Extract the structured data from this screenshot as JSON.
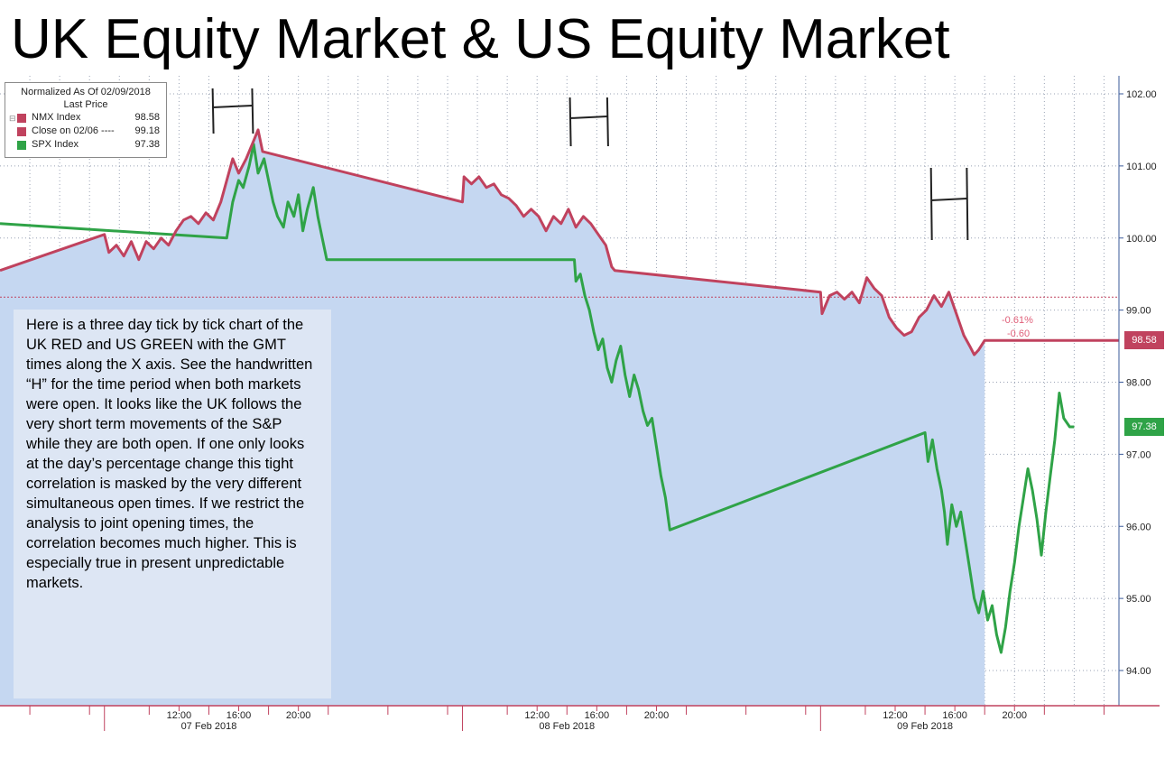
{
  "slide": {
    "title": "UK Equity Market & US Equity Market",
    "note": "Here is a three day tick by tick chart of the UK RED and US GREEN with the GMT times along the X axis.  See the handwritten “H” for the time period when both markets were open.  It looks like the UK follows the very short term movements of the S&P while they are both open.  If one only looks at the day’s percentage change this tight correlation is masked by the very different simultaneous open times.  If we restrict the analysis to joint opening times, the correlation becomes much higher.  This is especially true in present unpredictable markets."
  },
  "legend": {
    "header_1": "Normalized As Of 02/09/2018",
    "header_2": "Last Price",
    "items": [
      {
        "label": "NMX Index",
        "value": "98.58",
        "color": "#c0425e"
      },
      {
        "label": "Close on 02/06 ----",
        "value": "99.18",
        "color": "#c0425e"
      },
      {
        "label": "SPX Index",
        "value": "97.38",
        "color": "#2fa347"
      }
    ]
  },
  "annotations": {
    "pct_change": "-0.61%",
    "abs_change": "-0.60",
    "nmx_last_tag": "98.58",
    "spx_last_tag": "97.38",
    "handwritten_marker": "H"
  },
  "chart_data": {
    "type": "line",
    "title": "",
    "x_unit": "hours since 07 Feb 2018 00:00 GMT",
    "y_ticks": [
      "102.00",
      "101.00",
      "100.00",
      "99.00",
      "98.00",
      "97.00",
      "96.00",
      "95.00",
      "94.00"
    ],
    "ylim": [
      93.6,
      102.2
    ],
    "x_ticks": [
      {
        "label": "12:00",
        "x": 12
      },
      {
        "label": "16:00",
        "x": 16
      },
      {
        "label": "20:00",
        "x": 20
      },
      {
        "label": "12:00",
        "x": 36
      },
      {
        "label": "16:00",
        "x": 40
      },
      {
        "label": "20:00",
        "x": 44
      },
      {
        "label": "12:00",
        "x": 60
      },
      {
        "label": "16:00",
        "x": 64
      },
      {
        "label": "20:00",
        "x": 68
      }
    ],
    "date_labels": [
      {
        "label": "07 Feb 2018",
        "x": 14
      },
      {
        "label": "08 Feb 2018",
        "x": 38
      },
      {
        "label": "09 Feb 2018",
        "x": 62
      }
    ],
    "reference_line": {
      "name": "Close on 02/06",
      "value": 99.18,
      "color": "#c0425e"
    },
    "h_markers": [
      {
        "x_start": 14.25,
        "x_end": 16.9
      },
      {
        "x_start": 38.2,
        "x_end": 40.7
      },
      {
        "x_start": 62.4,
        "x_end": 64.8
      }
    ],
    "series": [
      {
        "name": "NMX Index",
        "color": "#c0425e",
        "fill": true,
        "points": [
          [
            0.0,
            99.55
          ],
          [
            7.0,
            100.05
          ],
          [
            7.3,
            99.8
          ],
          [
            7.8,
            99.9
          ],
          [
            8.3,
            99.75
          ],
          [
            8.8,
            99.95
          ],
          [
            9.3,
            99.7
          ],
          [
            9.8,
            99.95
          ],
          [
            10.3,
            99.85
          ],
          [
            10.8,
            100.0
          ],
          [
            11.3,
            99.9
          ],
          [
            11.8,
            100.1
          ],
          [
            12.3,
            100.25
          ],
          [
            12.8,
            100.3
          ],
          [
            13.3,
            100.2
          ],
          [
            13.8,
            100.35
          ],
          [
            14.3,
            100.25
          ],
          [
            14.8,
            100.5
          ],
          [
            15.2,
            100.8
          ],
          [
            15.6,
            101.1
          ],
          [
            16.0,
            100.9
          ],
          [
            16.5,
            101.1
          ],
          [
            17.0,
            101.35
          ],
          [
            17.3,
            101.5
          ],
          [
            17.6,
            101.2
          ],
          [
            31.0,
            100.5
          ],
          [
            31.1,
            100.85
          ],
          [
            31.6,
            100.75
          ],
          [
            32.1,
            100.85
          ],
          [
            32.6,
            100.7
          ],
          [
            33.1,
            100.75
          ],
          [
            33.6,
            100.6
          ],
          [
            34.1,
            100.55
          ],
          [
            34.6,
            100.45
          ],
          [
            35.1,
            100.3
          ],
          [
            35.6,
            100.4
          ],
          [
            36.1,
            100.3
          ],
          [
            36.6,
            100.1
          ],
          [
            37.1,
            100.3
          ],
          [
            37.6,
            100.2
          ],
          [
            38.1,
            100.4
          ],
          [
            38.6,
            100.15
          ],
          [
            39.1,
            100.3
          ],
          [
            39.6,
            100.2
          ],
          [
            40.1,
            100.05
          ],
          [
            40.6,
            99.9
          ],
          [
            41.0,
            99.6
          ],
          [
            41.2,
            99.55
          ],
          [
            55.0,
            99.25
          ],
          [
            55.1,
            98.95
          ],
          [
            55.6,
            99.2
          ],
          [
            56.1,
            99.25
          ],
          [
            56.6,
            99.15
          ],
          [
            57.1,
            99.25
          ],
          [
            57.6,
            99.1
          ],
          [
            58.1,
            99.45
          ],
          [
            58.6,
            99.3
          ],
          [
            59.1,
            99.2
          ],
          [
            59.6,
            98.9
          ],
          [
            60.1,
            98.75
          ],
          [
            60.6,
            98.65
          ],
          [
            61.1,
            98.7
          ],
          [
            61.6,
            98.9
          ],
          [
            62.1,
            99.0
          ],
          [
            62.6,
            99.2
          ],
          [
            63.1,
            99.05
          ],
          [
            63.6,
            99.25
          ],
          [
            64.1,
            98.95
          ],
          [
            64.6,
            98.65
          ],
          [
            65.0,
            98.5
          ],
          [
            65.3,
            98.38
          ],
          [
            65.6,
            98.45
          ],
          [
            66.0,
            98.58
          ],
          [
            75.0,
            98.58
          ]
        ]
      },
      {
        "name": "SPX Index",
        "color": "#2fa347",
        "fill": false,
        "points": [
          [
            0.0,
            100.2
          ],
          [
            15.2,
            100.0
          ],
          [
            15.6,
            100.5
          ],
          [
            16.0,
            100.8
          ],
          [
            16.3,
            100.7
          ],
          [
            16.7,
            101.0
          ],
          [
            17.0,
            101.3
          ],
          [
            17.3,
            100.9
          ],
          [
            17.7,
            101.1
          ],
          [
            18.0,
            100.8
          ],
          [
            18.3,
            100.5
          ],
          [
            18.6,
            100.3
          ],
          [
            19.0,
            100.15
          ],
          [
            19.3,
            100.5
          ],
          [
            19.7,
            100.3
          ],
          [
            20.0,
            100.6
          ],
          [
            20.3,
            100.1
          ],
          [
            20.6,
            100.4
          ],
          [
            21.0,
            100.7
          ],
          [
            21.3,
            100.3
          ],
          [
            21.6,
            100.0
          ],
          [
            21.9,
            99.7
          ],
          [
            38.5,
            99.7
          ],
          [
            38.6,
            99.4
          ],
          [
            38.9,
            99.5
          ],
          [
            39.2,
            99.2
          ],
          [
            39.5,
            99.0
          ],
          [
            39.8,
            98.7
          ],
          [
            40.1,
            98.45
          ],
          [
            40.4,
            98.6
          ],
          [
            40.7,
            98.2
          ],
          [
            41.0,
            98.0
          ],
          [
            41.3,
            98.3
          ],
          [
            41.6,
            98.5
          ],
          [
            41.9,
            98.1
          ],
          [
            42.2,
            97.8
          ],
          [
            42.5,
            98.1
          ],
          [
            42.8,
            97.9
          ],
          [
            43.1,
            97.6
          ],
          [
            43.4,
            97.4
          ],
          [
            43.7,
            97.5
          ],
          [
            44.0,
            97.1
          ],
          [
            44.3,
            96.7
          ],
          [
            44.6,
            96.4
          ],
          [
            44.9,
            95.95
          ],
          [
            62.0,
            97.3
          ],
          [
            62.2,
            96.9
          ],
          [
            62.5,
            97.2
          ],
          [
            62.8,
            96.8
          ],
          [
            63.1,
            96.5
          ],
          [
            63.3,
            96.2
          ],
          [
            63.5,
            95.75
          ],
          [
            63.8,
            96.3
          ],
          [
            64.1,
            96.0
          ],
          [
            64.4,
            96.2
          ],
          [
            64.7,
            95.8
          ],
          [
            65.0,
            95.4
          ],
          [
            65.3,
            95.0
          ],
          [
            65.6,
            94.8
          ],
          [
            65.9,
            95.1
          ],
          [
            66.2,
            94.7
          ],
          [
            66.5,
            94.9
          ],
          [
            66.8,
            94.5
          ],
          [
            67.1,
            94.25
          ],
          [
            67.4,
            94.6
          ],
          [
            67.7,
            95.1
          ],
          [
            68.0,
            95.5
          ],
          [
            68.3,
            96.0
          ],
          [
            68.6,
            96.4
          ],
          [
            68.9,
            96.8
          ],
          [
            69.2,
            96.5
          ],
          [
            69.5,
            96.1
          ],
          [
            69.8,
            95.6
          ],
          [
            70.1,
            96.2
          ],
          [
            70.4,
            96.7
          ],
          [
            70.7,
            97.2
          ],
          [
            71.0,
            97.85
          ],
          [
            71.3,
            97.5
          ],
          [
            71.7,
            97.38
          ],
          [
            72.0,
            97.38
          ]
        ]
      }
    ]
  }
}
